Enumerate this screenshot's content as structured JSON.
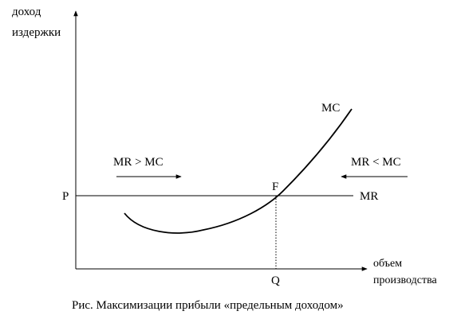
{
  "axes": {
    "y_label_line1": "доход",
    "y_label_line2": "издержки",
    "x_label_line1": "объем",
    "x_label_line2": "производства"
  },
  "curves": {
    "mc_label": "MC",
    "mr_label": "MR"
  },
  "points": {
    "price_label": "P",
    "intersection_label": "F",
    "quantity_label": "Q"
  },
  "annotations": {
    "left_condition": "MR > MC",
    "right_condition": "MR < MC"
  },
  "caption": "Рис. Максимизации прибыли «предельным доходом»",
  "colors": {
    "line": "#000000",
    "background": "#ffffff"
  }
}
